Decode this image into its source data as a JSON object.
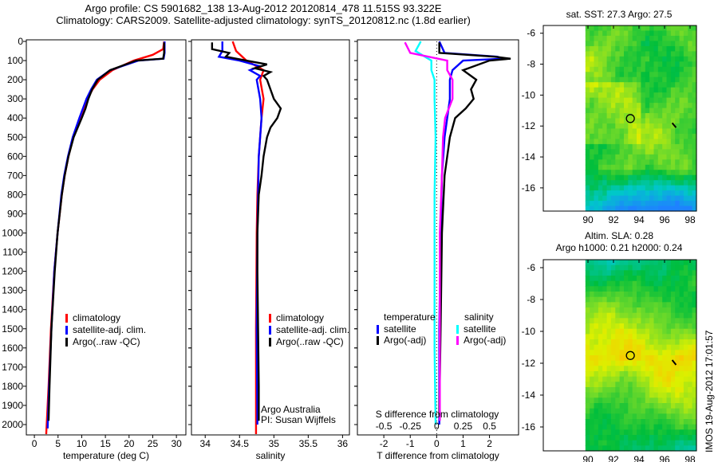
{
  "header": {
    "line1": "Argo profile: CS 5901682_138 13-Aug-2012 20120814_478 11.515S 93.322E",
    "line2": "Climatology: CARS2009. Satellite-adjusted climatology: synTS_20120812.nc (1.8d earlier)"
  },
  "side_label": "IMOS 19-Aug-2012 17:01:57",
  "colors": {
    "climatology": "#ff0000",
    "satellite": "#0000ff",
    "argo": "#000000",
    "s_satellite": "#00ffff",
    "s_argo": "#ff00ff"
  },
  "chart_data": [
    {
      "type": "line",
      "id": "temperature",
      "xlabel": "temperature (deg C)",
      "ylabel": "",
      "xlim": [
        -1.7,
        32
      ],
      "ylim": [
        2055,
        0
      ],
      "xticks": [
        "0",
        "5",
        "10",
        "15",
        "20",
        "25",
        "30"
      ],
      "xtick_values": [
        0,
        5,
        10,
        15,
        20,
        25,
        30
      ],
      "yticks": [
        "0",
        "100",
        "200",
        "300",
        "400",
        "500",
        "600",
        "700",
        "800",
        "900",
        "1000",
        "1100",
        "1200",
        "1300",
        "1400",
        "1500",
        "1600",
        "1700",
        "1800",
        "1900",
        "2000"
      ],
      "legend": [
        "climatology",
        "satellite-adj. clim.",
        "Argo(..raw -QC)"
      ],
      "legend_placement": "lower-center",
      "series": [
        {
          "name": "climatology",
          "color": "#ff0000",
          "depth": [
            0,
            40,
            70,
            100,
            150,
            200,
            250,
            300,
            400,
            500,
            600,
            700,
            800,
            1000,
            1200,
            1500,
            1800,
            2050
          ],
          "values": [
            27.4,
            27.2,
            25,
            21,
            16.5,
            13.8,
            12.3,
            11.2,
            9.6,
            8.2,
            7.2,
            6.4,
            5.8,
            4.9,
            4.2,
            3.5,
            3.0,
            2.5
          ]
        },
        {
          "name": "satellite-adj. clim.",
          "color": "#0000ff",
          "depth": [
            0,
            60,
            90,
            100,
            150,
            200,
            250,
            300,
            400,
            500,
            600,
            700,
            800,
            1000,
            1200,
            1500,
            1800,
            2020
          ],
          "values": [
            27.5,
            27.5,
            27.3,
            22,
            16,
            13.2,
            12,
            11,
            9.5,
            8.1,
            7.1,
            6.3,
            5.7,
            4.9,
            4.2,
            3.6,
            3.1,
            2.8
          ]
        },
        {
          "name": "Argo(..raw -QC)",
          "color": "#000000",
          "depth": [
            5,
            60,
            90,
            100,
            150,
            200,
            250,
            300,
            350,
            400,
            500,
            600,
            700,
            800,
            1000,
            1200,
            1500,
            1800,
            1980
          ],
          "values": [
            27.4,
            27.4,
            27.2,
            21.5,
            16,
            13.4,
            12.2,
            11.4,
            10.8,
            10,
            8.3,
            7.2,
            6.4,
            5.8,
            4.9,
            4.3,
            3.6,
            3.2,
            3.0
          ]
        }
      ]
    },
    {
      "type": "line",
      "id": "salinity",
      "xlabel": "salinity",
      "xlim": [
        33.8,
        36.1
      ],
      "ylim": [
        2055,
        0
      ],
      "xticks": [
        "34",
        "34.5",
        "35",
        "35.5",
        "36"
      ],
      "xtick_values": [
        34,
        34.5,
        35,
        35.5,
        36
      ],
      "legend": [
        "climatology",
        "satellite-adj. clim.",
        "Argo(..raw -QC)"
      ],
      "legend_placement": "lower-right",
      "annotation": [
        "Argo Australia",
        "PI: Susan Wijffels"
      ],
      "series": [
        {
          "name": "climatology",
          "color": "#ff0000",
          "depth": [
            0,
            50,
            100,
            150,
            200,
            300,
            400,
            600,
            800,
            1000,
            1500,
            2050
          ],
          "values": [
            34.4,
            34.45,
            34.6,
            34.85,
            34.8,
            34.85,
            34.82,
            34.78,
            34.76,
            34.75,
            34.74,
            34.74
          ]
        },
        {
          "name": "satellite-adj. clim.",
          "color": "#0000ff",
          "depth": [
            0,
            50,
            80,
            100,
            130,
            150,
            180,
            200,
            300,
            400,
            600,
            800,
            1000,
            1500,
            2000
          ],
          "values": [
            34.25,
            34.25,
            34.2,
            34.5,
            34.8,
            34.65,
            34.8,
            34.75,
            34.8,
            34.82,
            34.78,
            34.77,
            34.76,
            34.75,
            34.76
          ]
        },
        {
          "name": "Argo(..raw -QC)",
          "color": "#000000",
          "depth": [
            5,
            40,
            60,
            80,
            100,
            120,
            140,
            160,
            180,
            200,
            250,
            300,
            350,
            400,
            450,
            500,
            600,
            700,
            800,
            1000,
            1200,
            1500,
            1800,
            1980
          ],
          "values": [
            34.1,
            34.1,
            34.35,
            34.3,
            34.6,
            34.9,
            34.72,
            34.95,
            34.85,
            34.9,
            34.95,
            35.0,
            35.1,
            35.05,
            34.95,
            34.9,
            34.85,
            34.82,
            34.78,
            34.76,
            34.76,
            34.77,
            34.78,
            34.78
          ]
        }
      ]
    },
    {
      "type": "line",
      "id": "differences",
      "xlabel": "T difference from climatology",
      "x2label": "S difference from climatology",
      "xlim": [
        -3,
        3.1
      ],
      "x2lim": [
        -0.75,
        0.775
      ],
      "ylim": [
        2055,
        0
      ],
      "xticks": [
        "-2",
        "-1",
        "0",
        "1",
        "2"
      ],
      "xtick_values": [
        -2,
        -1,
        0,
        1,
        2
      ],
      "x2ticks": [
        "-0.5",
        "-0.25",
        "0",
        "0.25",
        "0.5"
      ],
      "x2tick_values": [
        -0.5,
        -0.25,
        0,
        0.25,
        0.5
      ],
      "legend_titles": [
        "temperature",
        "salinity"
      ],
      "legend": [
        "satellite",
        "Argo(-adj)",
        "satellite",
        "Argo(-adj)"
      ],
      "series": [
        {
          "name": "T satellite",
          "axis": "T",
          "color": "#0000ff",
          "depth": [
            0,
            60,
            80,
            90,
            100,
            150,
            200,
            300,
            400,
            500,
            700,
            1000,
            1500,
            2000
          ],
          "values": [
            0.1,
            0.3,
            2.3,
            2.5,
            1.0,
            0.6,
            0.5,
            0.5,
            0.4,
            0.3,
            0.2,
            0.15,
            0.1,
            0.1
          ]
        },
        {
          "name": "T Argo(-adj)",
          "axis": "T",
          "color": "#000000",
          "depth": [
            5,
            60,
            80,
            90,
            100,
            150,
            200,
            250,
            300,
            350,
            400,
            500,
            700,
            1000,
            1500,
            1950
          ],
          "values": [
            0.1,
            0.1,
            2.2,
            2.8,
            2.0,
            1.0,
            1.5,
            1.3,
            1.4,
            1.1,
            0.7,
            0.5,
            0.3,
            0.2,
            0.15,
            0.1
          ]
        },
        {
          "name": "S satellite",
          "axis": "S",
          "color": "#00ffff",
          "depth": [
            0,
            50,
            100,
            150,
            200,
            300,
            500,
            800,
            1200,
            1600,
            2000
          ],
          "values": [
            -0.15,
            -0.2,
            -0.05,
            -0.05,
            -0.02,
            -0.02,
            -0.01,
            -0.02,
            -0.02,
            -0.02,
            -0.01
          ]
        },
        {
          "name": "S Argo(-adj)",
          "axis": "S",
          "color": "#ff00ff",
          "depth": [
            5,
            60,
            100,
            150,
            200,
            300,
            400,
            500,
            700,
            1000,
            1500,
            1980
          ],
          "values": [
            -0.3,
            -0.25,
            0.1,
            0.1,
            0.15,
            0.15,
            0.08,
            0.06,
            0.05,
            0.03,
            0.03,
            0.03
          ]
        }
      ]
    },
    {
      "type": "heatmap",
      "id": "sst-map",
      "title": "sat. SST: 27.3 Argo: 27.5",
      "xticks": [
        "90",
        "92",
        "94",
        "96",
        "98"
      ],
      "yticks": [
        "-6",
        "-8",
        "-10",
        "-12",
        "-14",
        "-16"
      ],
      "xlim": [
        86.5,
        98.5
      ],
      "ylim": [
        -17.5,
        -5.5
      ],
      "argo_position": [
        93.322,
        -11.515
      ]
    },
    {
      "type": "heatmap",
      "id": "sla-map",
      "title": [
        "Altim. SLA: 0.28",
        "Argo h1000: 0.21 h2000: 0.24"
      ],
      "xticks": [
        "90",
        "92",
        "94",
        "96",
        "98"
      ],
      "yticks": [
        "-6",
        "-8",
        "-10",
        "-12",
        "-14",
        "-16"
      ],
      "xlim": [
        86.5,
        98.5
      ],
      "ylim": [
        -17.5,
        -5.5
      ],
      "argo_position": [
        93.322,
        -11.515
      ]
    }
  ]
}
